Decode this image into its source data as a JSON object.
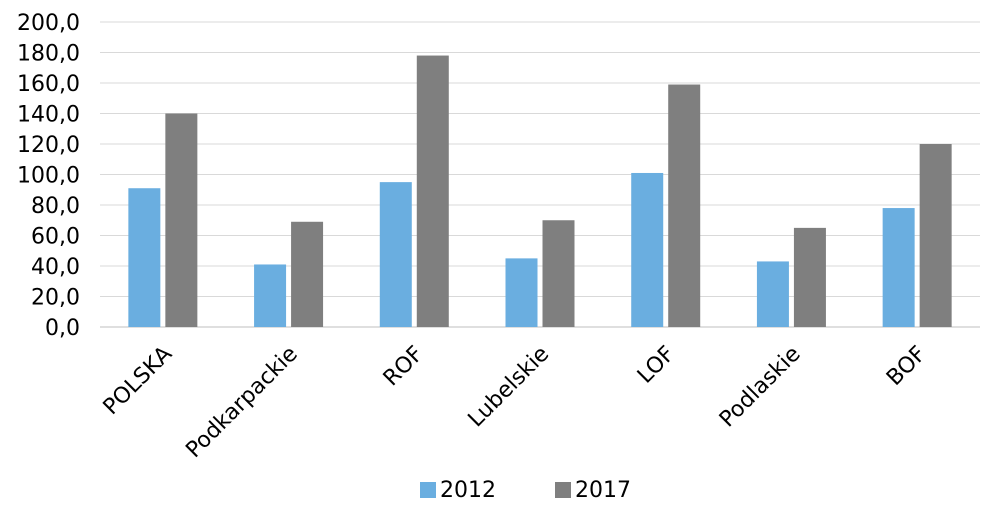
{
  "chart_data": {
    "type": "bar",
    "categories": [
      "POLSKA",
      "Podkarpackie",
      "ROF",
      "Lubelskie",
      "LOF",
      "Podlaskie",
      "BOF"
    ],
    "series": [
      {
        "name": "2012",
        "values": [
          91,
          41,
          95,
          45,
          101,
          43,
          78
        ],
        "color": "#6aaee0"
      },
      {
        "name": "2017",
        "values": [
          140,
          69,
          178,
          70,
          159,
          65,
          120
        ],
        "color": "#7f7f7f"
      }
    ],
    "ylim": [
      0,
      200
    ],
    "yticks": [
      "0,0",
      "20,0",
      "40,0",
      "60,0",
      "80,0",
      "100,0",
      "120,0",
      "140,0",
      "160,0",
      "180,0",
      "200,0"
    ],
    "grid": true,
    "legend_position": "bottom"
  }
}
